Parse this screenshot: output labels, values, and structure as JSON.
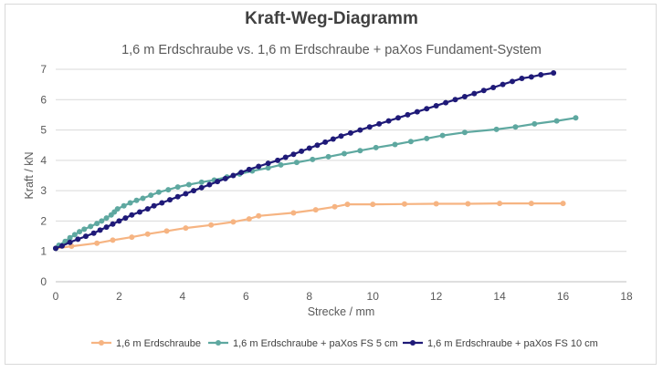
{
  "chart_data": {
    "type": "line",
    "title": "Kraft-Weg-Diagramm",
    "subtitle": "1,6 m Erdschraube vs. 1,6 m Erdschraube + paXos Fundament-System",
    "xlabel": "Strecke / mm",
    "ylabel": "Kraft / kN",
    "xlim": [
      0,
      18
    ],
    "ylim": [
      0,
      7
    ],
    "xticks": [
      "0",
      "2",
      "4",
      "6",
      "8",
      "10",
      "12",
      "14",
      "16",
      "18"
    ],
    "yticks": [
      "0",
      "1",
      "2",
      "3",
      "4",
      "5",
      "6",
      "7"
    ],
    "grid": "horizontal",
    "legend": "bottom",
    "series": [
      {
        "name": "1,6 m Erdschraube",
        "color": "#f6b482",
        "points": [
          [
            0,
            1.1
          ],
          [
            0.5,
            1.17
          ],
          [
            1.3,
            1.27
          ],
          [
            1.8,
            1.37
          ],
          [
            2.4,
            1.47
          ],
          [
            2.9,
            1.57
          ],
          [
            3.5,
            1.67
          ],
          [
            4.1,
            1.77
          ],
          [
            4.9,
            1.87
          ],
          [
            5.6,
            1.97
          ],
          [
            6.1,
            2.07
          ],
          [
            6.4,
            2.17
          ],
          [
            7.5,
            2.27
          ],
          [
            8.2,
            2.37
          ],
          [
            8.8,
            2.47
          ],
          [
            9.2,
            2.55
          ],
          [
            10,
            2.55
          ],
          [
            11,
            2.56
          ],
          [
            12,
            2.57
          ],
          [
            13,
            2.57
          ],
          [
            14,
            2.58
          ],
          [
            15,
            2.58
          ],
          [
            16,
            2.58
          ]
        ]
      },
      {
        "name": "1,6 m Erdschraube + paXos FS 5 cm",
        "color": "#5ea8a0",
        "points": [
          [
            0,
            1.1
          ],
          [
            0.1,
            1.2
          ],
          [
            0.3,
            1.33
          ],
          [
            0.45,
            1.45
          ],
          [
            0.6,
            1.55
          ],
          [
            0.75,
            1.65
          ],
          [
            0.9,
            1.73
          ],
          [
            1.1,
            1.82
          ],
          [
            1.3,
            1.92
          ],
          [
            1.45,
            2.0
          ],
          [
            1.6,
            2.1
          ],
          [
            1.75,
            2.2
          ],
          [
            1.85,
            2.3
          ],
          [
            1.95,
            2.4
          ],
          [
            2.15,
            2.5
          ],
          [
            2.35,
            2.6
          ],
          [
            2.55,
            2.68
          ],
          [
            2.75,
            2.75
          ],
          [
            3.0,
            2.85
          ],
          [
            3.25,
            2.95
          ],
          [
            3.55,
            3.03
          ],
          [
            3.85,
            3.12
          ],
          [
            4.2,
            3.2
          ],
          [
            4.6,
            3.28
          ],
          [
            5.0,
            3.35
          ],
          [
            5.4,
            3.45
          ],
          [
            5.8,
            3.55
          ],
          [
            6.2,
            3.65
          ],
          [
            6.7,
            3.75
          ],
          [
            7.1,
            3.85
          ],
          [
            7.6,
            3.93
          ],
          [
            8.1,
            4.03
          ],
          [
            8.6,
            4.12
          ],
          [
            9.1,
            4.22
          ],
          [
            9.6,
            4.32
          ],
          [
            10.1,
            4.42
          ],
          [
            10.7,
            4.52
          ],
          [
            11.2,
            4.62
          ],
          [
            11.7,
            4.72
          ],
          [
            12.2,
            4.82
          ],
          [
            12.9,
            4.92
          ],
          [
            13.9,
            5.02
          ],
          [
            14.5,
            5.1
          ],
          [
            15.1,
            5.2
          ],
          [
            15.8,
            5.3
          ],
          [
            16.4,
            5.4
          ]
        ]
      },
      {
        "name": "1,6 m Erdschraube + paXos FS 10 cm",
        "color": "#1f1a78",
        "points": [
          [
            0,
            1.1
          ],
          [
            0.2,
            1.18
          ],
          [
            0.45,
            1.3
          ],
          [
            0.7,
            1.4
          ],
          [
            0.95,
            1.5
          ],
          [
            1.2,
            1.6
          ],
          [
            1.4,
            1.7
          ],
          [
            1.6,
            1.8
          ],
          [
            1.8,
            1.9
          ],
          [
            2.0,
            2.0
          ],
          [
            2.2,
            2.1
          ],
          [
            2.4,
            2.2
          ],
          [
            2.65,
            2.3
          ],
          [
            2.9,
            2.4
          ],
          [
            3.1,
            2.5
          ],
          [
            3.35,
            2.6
          ],
          [
            3.6,
            2.7
          ],
          [
            3.85,
            2.8
          ],
          [
            4.1,
            2.9
          ],
          [
            4.35,
            3.0
          ],
          [
            4.6,
            3.1
          ],
          [
            4.85,
            3.2
          ],
          [
            5.1,
            3.3
          ],
          [
            5.35,
            3.4
          ],
          [
            5.6,
            3.5
          ],
          [
            5.85,
            3.6
          ],
          [
            6.1,
            3.7
          ],
          [
            6.4,
            3.8
          ],
          [
            6.7,
            3.9
          ],
          [
            7.0,
            4.0
          ],
          [
            7.25,
            4.1
          ],
          [
            7.5,
            4.2
          ],
          [
            7.75,
            4.3
          ],
          [
            8.0,
            4.4
          ],
          [
            8.25,
            4.5
          ],
          [
            8.5,
            4.6
          ],
          [
            8.75,
            4.7
          ],
          [
            9.0,
            4.8
          ],
          [
            9.3,
            4.9
          ],
          [
            9.6,
            5.0
          ],
          [
            9.9,
            5.1
          ],
          [
            10.2,
            5.2
          ],
          [
            10.5,
            5.3
          ],
          [
            10.8,
            5.4
          ],
          [
            11.1,
            5.5
          ],
          [
            11.4,
            5.6
          ],
          [
            11.7,
            5.7
          ],
          [
            12.0,
            5.8
          ],
          [
            12.3,
            5.9
          ],
          [
            12.6,
            6.0
          ],
          [
            12.9,
            6.1
          ],
          [
            13.2,
            6.2
          ],
          [
            13.5,
            6.3
          ],
          [
            13.8,
            6.4
          ],
          [
            14.1,
            6.5
          ],
          [
            14.4,
            6.6
          ],
          [
            14.7,
            6.7
          ],
          [
            15.0,
            6.75
          ],
          [
            15.3,
            6.82
          ],
          [
            15.7,
            6.88
          ]
        ]
      }
    ]
  }
}
